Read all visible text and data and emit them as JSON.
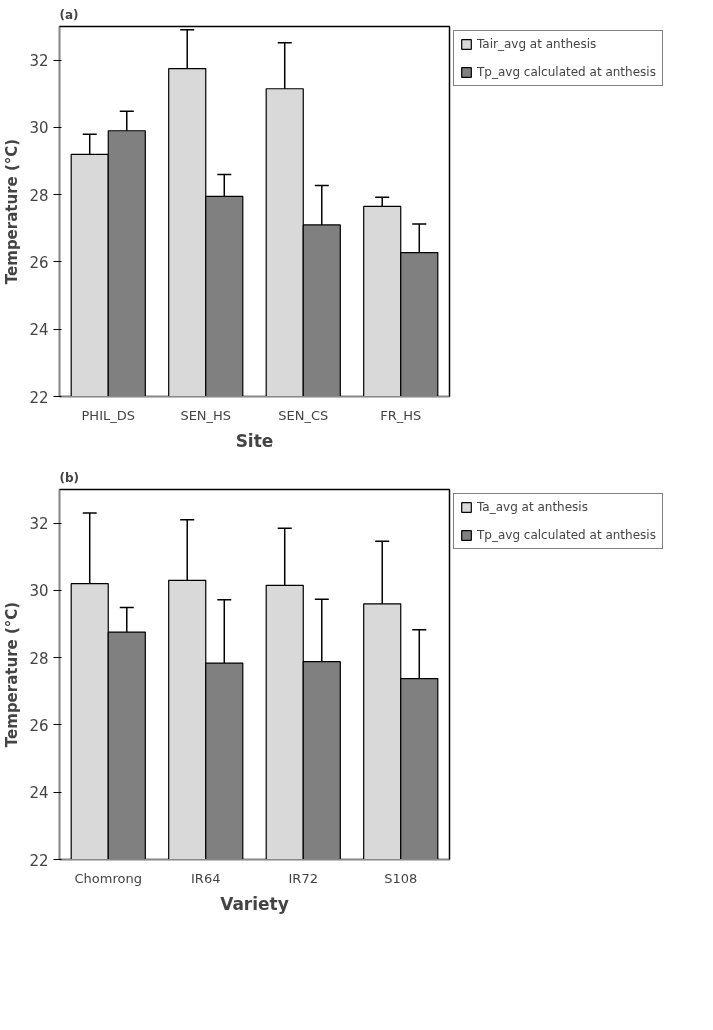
{
  "chart_data": [
    {
      "type": "bar",
      "title": "(a)",
      "xlabel": "Site",
      "ylabel": "Temperature (°C)",
      "categories": [
        "PHIL_DS",
        "SEN_HS",
        "SEN_CS",
        "FR_HS"
      ],
      "series": [
        {
          "name": "Tair_avg at anthesis",
          "color": "#d9d9d9",
          "values": [
            29.2,
            31.75,
            31.15,
            27.65
          ],
          "errors": [
            0.6,
            1.15,
            1.37,
            0.27
          ]
        },
        {
          "name": "Tp_avg calculated at anthesis",
          "color": "#808080",
          "values": [
            29.9,
            27.95,
            27.1,
            26.28
          ],
          "errors": [
            0.58,
            0.65,
            1.17,
            0.85
          ]
        }
      ],
      "ylim": [
        22,
        33
      ],
      "yticks": [
        22,
        24,
        26,
        28,
        30,
        32
      ],
      "grid": false,
      "legend": "top right"
    },
    {
      "type": "bar",
      "title": "(b)",
      "xlabel": "Variety",
      "ylabel": "Temperature (°C)",
      "categories": [
        "Chomrong",
        "IR64",
        "IR72",
        "S108"
      ],
      "series": [
        {
          "name": "Ta_avg at anthesis",
          "color": "#d9d9d9",
          "values": [
            30.2,
            30.3,
            30.15,
            29.6
          ],
          "errors": [
            2.1,
            1.8,
            1.7,
            1.86
          ]
        },
        {
          "name": "Tp_avg calculated at anthesis",
          "color": "#808080",
          "values": [
            28.76,
            27.84,
            27.88,
            27.38
          ],
          "errors": [
            0.73,
            1.88,
            1.86,
            1.45
          ]
        }
      ],
      "ylim": [
        22,
        33
      ],
      "yticks": [
        22,
        24,
        26,
        28,
        30,
        32
      ],
      "grid": false,
      "legend": "top right"
    }
  ]
}
